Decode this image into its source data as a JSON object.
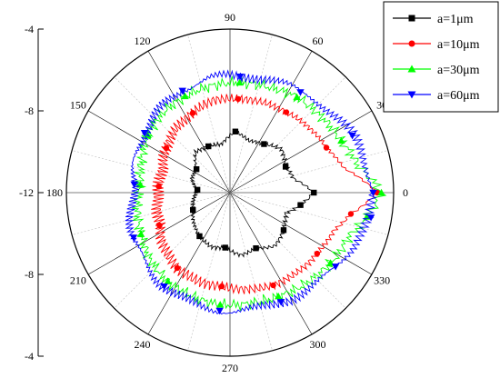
{
  "chart_data": {
    "type": "polar-line",
    "title": "",
    "radial_axis": {
      "ticks": [
        "-4",
        "-8",
        "-12",
        "-8",
        "-4"
      ],
      "tick_values": [
        -4,
        -8,
        -12,
        -8,
        -4
      ],
      "range": [
        -12,
        -4
      ]
    },
    "angular_axis": {
      "ticks": [
        "0",
        "30",
        "60",
        "90",
        "120",
        "150",
        "180",
        "210",
        "240",
        "270",
        "300",
        "330"
      ],
      "tick_values": [
        0,
        30,
        60,
        90,
        120,
        150,
        180,
        210,
        240,
        270,
        300,
        330
      ],
      "unit": "degrees"
    },
    "legend": {
      "position": "top-right"
    },
    "series": [
      {
        "name": "a=1μm",
        "color": "#000000",
        "marker": "square",
        "points": [
          {
            "angle": 0,
            "r": -7.9
          },
          {
            "angle": 12,
            "r": -8.8
          },
          {
            "angle": 25,
            "r": -9.0
          },
          {
            "angle": 40,
            "r": -8.7
          },
          {
            "angle": 55,
            "r": -9.1
          },
          {
            "angle": 70,
            "r": -9.3
          },
          {
            "angle": 85,
            "r": -9.0
          },
          {
            "angle": 100,
            "r": -9.6
          },
          {
            "angle": 115,
            "r": -9.5
          },
          {
            "angle": 130,
            "r": -9.4
          },
          {
            "angle": 145,
            "r": -10.0
          },
          {
            "angle": 160,
            "r": -10.0
          },
          {
            "angle": 175,
            "r": -10.4
          },
          {
            "angle": 190,
            "r": -10.2
          },
          {
            "angle": 205,
            "r": -10.0
          },
          {
            "angle": 220,
            "r": -9.7
          },
          {
            "angle": 235,
            "r": -9.4
          },
          {
            "angle": 250,
            "r": -9.2
          },
          {
            "angle": 265,
            "r": -9.3
          },
          {
            "angle": 280,
            "r": -8.9
          },
          {
            "angle": 295,
            "r": -9.0
          },
          {
            "angle": 310,
            "r": -8.6
          },
          {
            "angle": 325,
            "r": -8.8
          },
          {
            "angle": 340,
            "r": -9.1
          },
          {
            "angle": 350,
            "r": -8.5
          }
        ]
      },
      {
        "name": "a=10μm",
        "color": "#ff0000",
        "marker": "circle",
        "points": [
          {
            "angle": 0,
            "r": -4.8
          },
          {
            "angle": 12,
            "r": -6.3
          },
          {
            "angle": 25,
            "r": -6.8
          },
          {
            "angle": 40,
            "r": -7.0
          },
          {
            "angle": 55,
            "r": -7.2
          },
          {
            "angle": 70,
            "r": -7.3
          },
          {
            "angle": 85,
            "r": -7.4
          },
          {
            "angle": 100,
            "r": -7.4
          },
          {
            "angle": 115,
            "r": -7.7
          },
          {
            "angle": 130,
            "r": -7.9
          },
          {
            "angle": 145,
            "r": -8.2
          },
          {
            "angle": 160,
            "r": -8.5
          },
          {
            "angle": 175,
            "r": -8.5
          },
          {
            "angle": 190,
            "r": -8.4
          },
          {
            "angle": 205,
            "r": -8.2
          },
          {
            "angle": 220,
            "r": -7.8
          },
          {
            "angle": 235,
            "r": -7.5
          },
          {
            "angle": 250,
            "r": -7.4
          },
          {
            "angle": 265,
            "r": -7.4
          },
          {
            "angle": 280,
            "r": -7.2
          },
          {
            "angle": 295,
            "r": -7.0
          },
          {
            "angle": 310,
            "r": -6.9
          },
          {
            "angle": 325,
            "r": -6.8
          },
          {
            "angle": 340,
            "r": -6.6
          },
          {
            "angle": 350,
            "r": -6.0
          }
        ]
      },
      {
        "name": "a=30μm",
        "color": "#00ff00",
        "marker": "triangle-up",
        "points": [
          {
            "angle": 0,
            "r": -4.6
          },
          {
            "angle": 12,
            "r": -5.6
          },
          {
            "angle": 25,
            "r": -6.0
          },
          {
            "angle": 40,
            "r": -6.2
          },
          {
            "angle": 55,
            "r": -6.3
          },
          {
            "angle": 70,
            "r": -6.5
          },
          {
            "angle": 85,
            "r": -6.6
          },
          {
            "angle": 100,
            "r": -6.7
          },
          {
            "angle": 115,
            "r": -6.8
          },
          {
            "angle": 130,
            "r": -6.9
          },
          {
            "angle": 145,
            "r": -7.1
          },
          {
            "angle": 160,
            "r": -7.4
          },
          {
            "angle": 175,
            "r": -7.6
          },
          {
            "angle": 190,
            "r": -7.4
          },
          {
            "angle": 205,
            "r": -7.2
          },
          {
            "angle": 220,
            "r": -6.9
          },
          {
            "angle": 235,
            "r": -6.7
          },
          {
            "angle": 250,
            "r": -6.6
          },
          {
            "angle": 265,
            "r": -6.5
          },
          {
            "angle": 280,
            "r": -6.5
          },
          {
            "angle": 295,
            "r": -6.4
          },
          {
            "angle": 310,
            "r": -6.2
          },
          {
            "angle": 325,
            "r": -6.0
          },
          {
            "angle": 340,
            "r": -5.8
          },
          {
            "angle": 350,
            "r": -5.2
          }
        ]
      },
      {
        "name": "a=60μm",
        "color": "#0000ff",
        "marker": "triangle-down",
        "points": [
          {
            "angle": 0,
            "r": -5.0
          },
          {
            "angle": 12,
            "r": -5.2
          },
          {
            "angle": 25,
            "r": -5.4
          },
          {
            "angle": 40,
            "r": -5.7
          },
          {
            "angle": 55,
            "r": -6.0
          },
          {
            "angle": 70,
            "r": -6.1
          },
          {
            "angle": 85,
            "r": -6.3
          },
          {
            "angle": 100,
            "r": -6.3
          },
          {
            "angle": 115,
            "r": -6.5
          },
          {
            "angle": 130,
            "r": -6.7
          },
          {
            "angle": 145,
            "r": -6.9
          },
          {
            "angle": 160,
            "r": -7.1
          },
          {
            "angle": 175,
            "r": -7.3
          },
          {
            "angle": 190,
            "r": -7.1
          },
          {
            "angle": 205,
            "r": -6.8
          },
          {
            "angle": 220,
            "r": -6.6
          },
          {
            "angle": 235,
            "r": -6.4
          },
          {
            "angle": 250,
            "r": -6.3
          },
          {
            "angle": 265,
            "r": -6.2
          },
          {
            "angle": 280,
            "r": -6.2
          },
          {
            "angle": 295,
            "r": -6.1
          },
          {
            "angle": 310,
            "r": -5.9
          },
          {
            "angle": 325,
            "r": -5.7
          },
          {
            "angle": 340,
            "r": -5.4
          },
          {
            "angle": 350,
            "r": -5.0
          }
        ]
      }
    ]
  }
}
